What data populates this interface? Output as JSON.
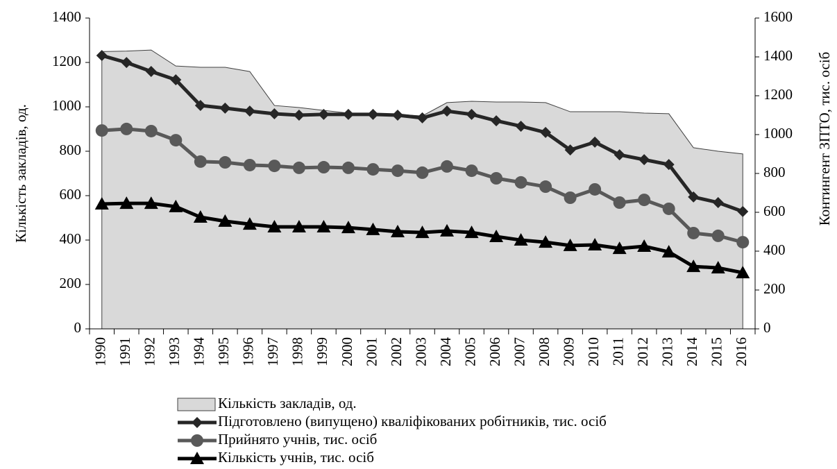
{
  "chart_data": {
    "type": "line",
    "y_label": "Кількість закладів, од.",
    "y2_label": "Контингент ЗПТО, тис. осіб",
    "categories": [
      "1990",
      "1991",
      "1992",
      "1993",
      "1994",
      "1995",
      "1996",
      "1997",
      "1998",
      "1999",
      "2000",
      "2001",
      "2002",
      "2003",
      "2004",
      "2005",
      "2006",
      "2007",
      "2008",
      "2009",
      "2010",
      "2011",
      "2012",
      "2013",
      "2014",
      "2015",
      "2016"
    ],
    "ylim": [
      0,
      1400
    ],
    "yticks": [
      0,
      200,
      400,
      600,
      800,
      1000,
      1200,
      1400
    ],
    "y2lim": [
      0,
      1600
    ],
    "y2ticks": [
      0,
      200,
      400,
      600,
      800,
      1000,
      1200,
      1400,
      1600
    ],
    "series": [
      {
        "name": "Кількість закладів, од.",
        "type": "area",
        "color": "#d9d9d9",
        "axis": "y",
        "values": [
          1249,
          1251,
          1256,
          1184,
          1178,
          1178,
          1159,
          1006,
          997,
          984,
          972,
          966,
          966,
          959,
          1019,
          1025,
          1022,
          1022,
          1019,
          978,
          978,
          978,
          972,
          969,
          816,
          800,
          788
        ]
      },
      {
        "name": "Підготовлено (випущено) кваліфікованих  робітників, тис. осіб",
        "type": "line",
        "marker": "diamond",
        "color": "#262626",
        "axis": "y2",
        "values": [
          1407,
          1371,
          1325,
          1282,
          1150,
          1136,
          1121,
          1107,
          1100,
          1104,
          1104,
          1104,
          1100,
          1086,
          1121,
          1104,
          1071,
          1043,
          1011,
          921,
          961,
          896,
          871,
          846,
          679,
          650,
          604
        ]
      },
      {
        "name": "Прийнято учнів, тис. осіб",
        "type": "line",
        "marker": "circle",
        "color": "#595959",
        "axis": "y2",
        "values": [
          1021,
          1029,
          1018,
          971,
          861,
          857,
          843,
          839,
          829,
          832,
          829,
          821,
          814,
          804,
          836,
          814,
          775,
          754,
          732,
          675,
          718,
          650,
          664,
          618,
          493,
          479,
          446
        ]
      },
      {
        "name": "Кількість учнів, тис. осіб",
        "type": "line",
        "marker": "triangle",
        "color": "#000000",
        "axis": "y2",
        "values": [
          643,
          646,
          646,
          629,
          575,
          554,
          539,
          525,
          525,
          525,
          521,
          511,
          500,
          496,
          504,
          496,
          475,
          457,
          446,
          429,
          432,
          414,
          425,
          396,
          321,
          314,
          289
        ]
      }
    ]
  }
}
